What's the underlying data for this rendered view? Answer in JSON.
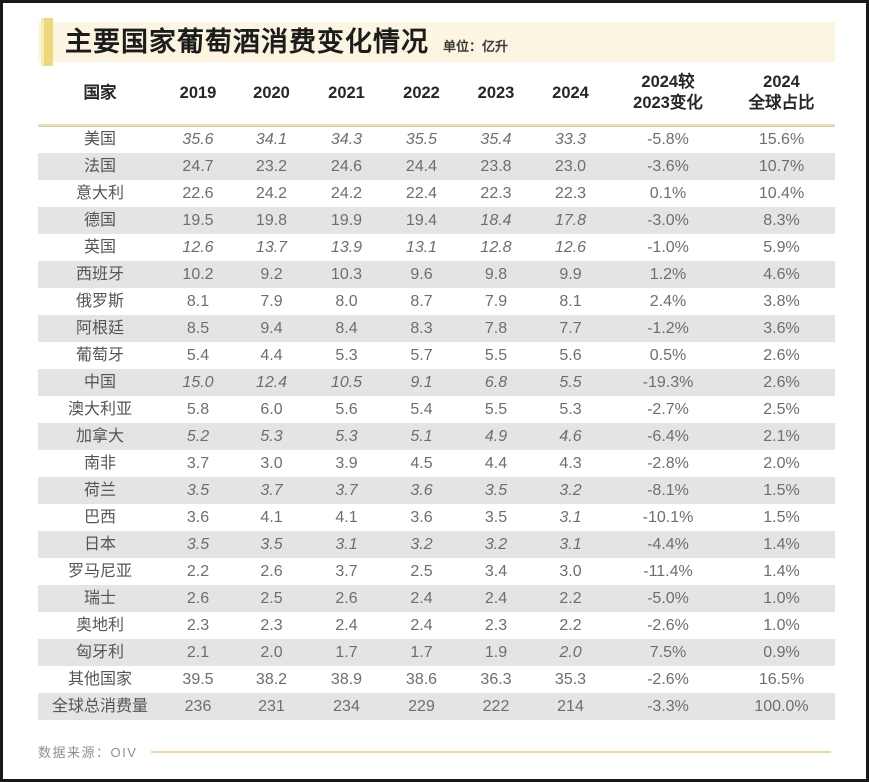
{
  "header": {
    "title": "主要国家葡萄酒消费变化情况",
    "unit_label": "单位：亿升"
  },
  "chart_data": {
    "type": "table",
    "title": "主要国家葡萄酒消费变化情况",
    "unit": "亿升",
    "columns": [
      "国家",
      "2019",
      "2020",
      "2021",
      "2022",
      "2023",
      "2024",
      "2024较\n2023变化",
      "2024\n全球占比"
    ],
    "rows": [
      {
        "country": "美国",
        "values": [
          "35.6",
          "34.1",
          "34.3",
          "35.5",
          "35.4",
          "33.3"
        ],
        "italic": [
          true,
          true,
          true,
          true,
          true,
          true
        ],
        "change": "-5.8%",
        "share": "15.6%"
      },
      {
        "country": "法国",
        "values": [
          "24.7",
          "23.2",
          "24.6",
          "24.4",
          "23.8",
          "23.0"
        ],
        "italic": [
          false,
          false,
          false,
          false,
          false,
          false
        ],
        "change": "-3.6%",
        "share": "10.7%"
      },
      {
        "country": "意大利",
        "values": [
          "22.6",
          "24.2",
          "24.2",
          "22.4",
          "22.3",
          "22.3"
        ],
        "italic": [
          false,
          false,
          false,
          false,
          false,
          false
        ],
        "change": "0.1%",
        "share": "10.4%"
      },
      {
        "country": "德国",
        "values": [
          "19.5",
          "19.8",
          "19.9",
          "19.4",
          "18.4",
          "17.8"
        ],
        "italic": [
          false,
          false,
          false,
          false,
          true,
          true
        ],
        "change": "-3.0%",
        "share": "8.3%"
      },
      {
        "country": "英国",
        "values": [
          "12.6",
          "13.7",
          "13.9",
          "13.1",
          "12.8",
          "12.6"
        ],
        "italic": [
          true,
          true,
          true,
          true,
          true,
          true
        ],
        "change": "-1.0%",
        "share": "5.9%"
      },
      {
        "country": "西班牙",
        "values": [
          "10.2",
          "9.2",
          "10.3",
          "9.6",
          "9.8",
          "9.9"
        ],
        "italic": [
          false,
          false,
          false,
          false,
          false,
          false
        ],
        "change": "1.2%",
        "share": "4.6%"
      },
      {
        "country": "俄罗斯",
        "values": [
          "8.1",
          "7.9",
          "8.0",
          "8.7",
          "7.9",
          "8.1"
        ],
        "italic": [
          false,
          false,
          false,
          false,
          false,
          false
        ],
        "change": "2.4%",
        "share": "3.8%"
      },
      {
        "country": "阿根廷",
        "values": [
          "8.5",
          "9.4",
          "8.4",
          "8.3",
          "7.8",
          "7.7"
        ],
        "italic": [
          false,
          false,
          false,
          false,
          false,
          false
        ],
        "change": "-1.2%",
        "share": "3.6%"
      },
      {
        "country": "葡萄牙",
        "values": [
          "5.4",
          "4.4",
          "5.3",
          "5.7",
          "5.5",
          "5.6"
        ],
        "italic": [
          false,
          false,
          false,
          false,
          false,
          false
        ],
        "change": "0.5%",
        "share": "2.6%"
      },
      {
        "country": "中国",
        "values": [
          "15.0",
          "12.4",
          "10.5",
          "9.1",
          "6.8",
          "5.5"
        ],
        "italic": [
          true,
          true,
          true,
          true,
          true,
          true
        ],
        "change": "-19.3%",
        "share": "2.6%"
      },
      {
        "country": "澳大利亚",
        "values": [
          "5.8",
          "6.0",
          "5.6",
          "5.4",
          "5.5",
          "5.3"
        ],
        "italic": [
          false,
          false,
          false,
          false,
          false,
          false
        ],
        "change": "-2.7%",
        "share": "2.5%"
      },
      {
        "country": "加拿大",
        "values": [
          "5.2",
          "5.3",
          "5.3",
          "5.1",
          "4.9",
          "4.6"
        ],
        "italic": [
          true,
          true,
          true,
          true,
          true,
          true
        ],
        "change": "-6.4%",
        "share": "2.1%"
      },
      {
        "country": "南非",
        "values": [
          "3.7",
          "3.0",
          "3.9",
          "4.5",
          "4.4",
          "4.3"
        ],
        "italic": [
          false,
          false,
          false,
          false,
          false,
          false
        ],
        "change": "-2.8%",
        "share": "2.0%"
      },
      {
        "country": "荷兰",
        "values": [
          "3.5",
          "3.7",
          "3.7",
          "3.6",
          "3.5",
          "3.2"
        ],
        "italic": [
          true,
          true,
          true,
          true,
          true,
          true
        ],
        "change": "-8.1%",
        "share": "1.5%"
      },
      {
        "country": "巴西",
        "values": [
          "3.6",
          "4.1",
          "4.1",
          "3.6",
          "3.5",
          "3.1"
        ],
        "italic": [
          false,
          false,
          false,
          false,
          false,
          true
        ],
        "change": "-10.1%",
        "share": "1.5%"
      },
      {
        "country": "日本",
        "values": [
          "3.5",
          "3.5",
          "3.1",
          "3.2",
          "3.2",
          "3.1"
        ],
        "italic": [
          true,
          true,
          true,
          true,
          true,
          true
        ],
        "change": "-4.4%",
        "share": "1.4%"
      },
      {
        "country": "罗马尼亚",
        "values": [
          "2.2",
          "2.6",
          "3.7",
          "2.5",
          "3.4",
          "3.0"
        ],
        "italic": [
          false,
          false,
          false,
          false,
          false,
          false
        ],
        "change": "-11.4%",
        "share": "1.4%"
      },
      {
        "country": "瑞士",
        "values": [
          "2.6",
          "2.5",
          "2.6",
          "2.4",
          "2.4",
          "2.2"
        ],
        "italic": [
          false,
          false,
          false,
          false,
          false,
          false
        ],
        "change": "-5.0%",
        "share": "1.0%"
      },
      {
        "country": "奥地利",
        "values": [
          "2.3",
          "2.3",
          "2.4",
          "2.4",
          "2.3",
          "2.2"
        ],
        "italic": [
          false,
          false,
          false,
          false,
          false,
          false
        ],
        "change": "-2.6%",
        "share": "1.0%"
      },
      {
        "country": "匈牙利",
        "values": [
          "2.1",
          "2.0",
          "1.7",
          "1.7",
          "1.9",
          "2.0"
        ],
        "italic": [
          false,
          false,
          false,
          false,
          false,
          true
        ],
        "change": "7.5%",
        "share": "0.9%"
      },
      {
        "country": "其他国家",
        "values": [
          "39.5",
          "38.2",
          "38.9",
          "38.6",
          "36.3",
          "35.3"
        ],
        "italic": [
          false,
          false,
          false,
          false,
          false,
          false
        ],
        "change": "-2.6%",
        "share": "16.5%"
      },
      {
        "country": "全球总消费量",
        "values": [
          "236",
          "231",
          "234",
          "229",
          "222",
          "214"
        ],
        "italic": [
          false,
          false,
          false,
          false,
          false,
          false
        ],
        "change": "-3.3%",
        "share": "100.0%"
      }
    ]
  },
  "footer": {
    "source_label": "数据来源：OIV"
  },
  "colors": {
    "accent_gold": "#EED87D",
    "band_cream": "#FBF5E1",
    "header_rule_yellow": "#EFE3A4",
    "stripe_gray": "#E4E4E4",
    "footer_line_gold": "#ECD9A1",
    "frame_border": "#181818"
  }
}
